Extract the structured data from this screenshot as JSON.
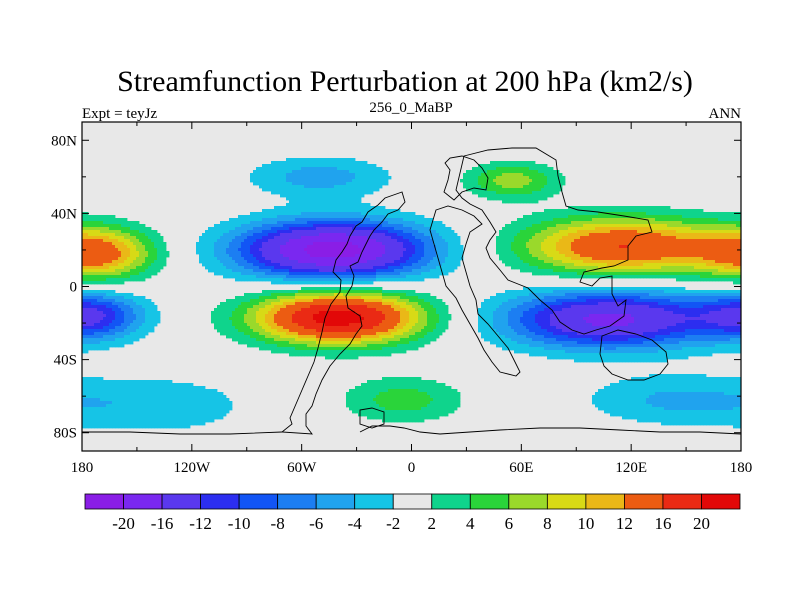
{
  "chart_data": {
    "type": "heatmap",
    "title": "Streamfunction Perturbation at 200 hPa (km2/s)",
    "left_string": "Expt = teyJz",
    "center_string": "256_0_MaBP",
    "right_string": "ANN",
    "x_range": [
      -180,
      180
    ],
    "y_range": [
      -90,
      90
    ],
    "x_ticks": [
      {
        "value": -180,
        "label": "180"
      },
      {
        "value": -120,
        "label": "120W"
      },
      {
        "value": -60,
        "label": "60W"
      },
      {
        "value": 0,
        "label": "0"
      },
      {
        "value": 60,
        "label": "60E"
      },
      {
        "value": 120,
        "label": "120E"
      },
      {
        "value": 180,
        "label": "180"
      }
    ],
    "y_ticks": [
      {
        "value": 80,
        "label": "80N"
      },
      {
        "value": 40,
        "label": "40N"
      },
      {
        "value": 0,
        "label": "0"
      },
      {
        "value": -40,
        "label": "40S"
      },
      {
        "value": -80,
        "label": "80S"
      }
    ],
    "contour_levels": [
      -20,
      -16,
      -12,
      -10,
      -8,
      -6,
      -4,
      -2,
      2,
      4,
      6,
      8,
      10,
      12,
      16,
      20
    ],
    "level_labels": [
      "-20",
      "-16",
      "-12",
      "-10",
      "-8",
      "-6",
      "-4",
      "-2",
      "2",
      "4",
      "6",
      "8",
      "10",
      "12",
      "16",
      "20"
    ],
    "colors": [
      "#8a1ee6",
      "#7a28f0",
      "#5a38ee",
      "#2c2ef0",
      "#1255f5",
      "#1c7ef2",
      "#20a3ee",
      "#16c4e6",
      "#e8e8e8",
      "#0fd48c",
      "#2ad43a",
      "#9ad92b",
      "#d8da16",
      "#eab817",
      "#ec5c12",
      "#ea2a14",
      "#e20808"
    ],
    "field_features": [
      {
        "lon": -43,
        "lat": 20,
        "amplitude": -22,
        "lon_width": 36,
        "lat_width": 11
      },
      {
        "lon": -172,
        "lat": 18,
        "amplitude": 13,
        "lon_width": 22,
        "lat_width": 10
      },
      {
        "lon": -40,
        "lat": -17,
        "amplitude": 22,
        "lon_width": 32,
        "lat_width": 10
      },
      {
        "lon": -175,
        "lat": -16,
        "amplitude": -11,
        "lon_width": 20,
        "lat_width": 9
      },
      {
        "lon": 115,
        "lat": 22,
        "amplitude": 16,
        "lon_width": 38,
        "lat_width": 11
      },
      {
        "lon": 108,
        "lat": -18,
        "amplitude": -17,
        "lon_width": 40,
        "lat_width": 11
      },
      {
        "lon": 55,
        "lat": 58,
        "amplitude": 7,
        "lon_width": 18,
        "lat_width": 7
      },
      {
        "lon": -50,
        "lat": 60,
        "amplitude": -5,
        "lon_width": 28,
        "lat_width": 8
      },
      {
        "lon": -5,
        "lat": -62,
        "amplitude": 5,
        "lon_width": 24,
        "lat_width": 9
      },
      {
        "lon": -140,
        "lat": -65,
        "amplitude": -3.5,
        "lon_width": 40,
        "lat_width": 12
      },
      {
        "lon": 140,
        "lat": -62,
        "amplitude": -4,
        "lon_width": 35,
        "lat_width": 10
      }
    ]
  }
}
